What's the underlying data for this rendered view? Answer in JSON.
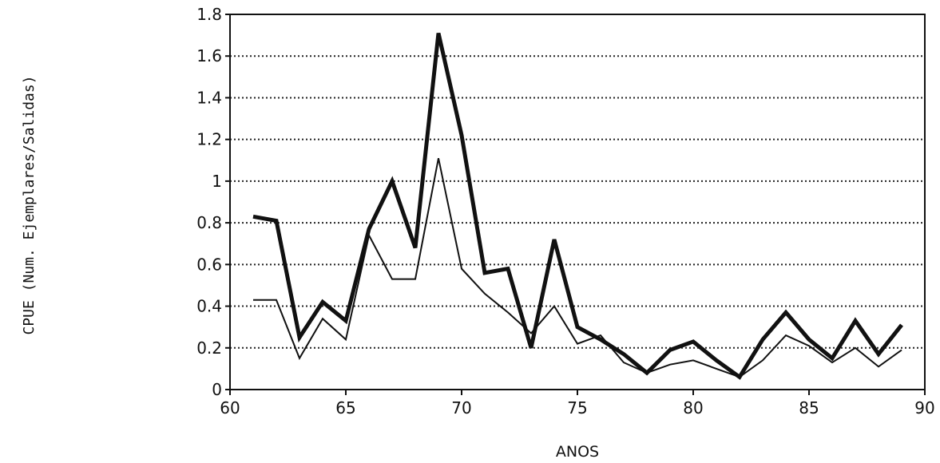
{
  "chart_data": {
    "type": "line",
    "title": "",
    "xlabel": "ANOS",
    "ylabel": "CPUE (Num. Ejemplares/Salidas)",
    "xlim": [
      60,
      90
    ],
    "ylim": [
      0,
      1.8
    ],
    "x_ticks": [
      "60",
      "65",
      "70",
      "75",
      "80",
      "85",
      "90"
    ],
    "y_ticks": [
      "0",
      "0.2",
      "0.4",
      "0.6",
      "0.8",
      "1",
      "1.2",
      "1.4",
      "1.6",
      "1.8"
    ],
    "grid": "horizontal dotted",
    "x": [
      61,
      62,
      63,
      64,
      65,
      66,
      67,
      68,
      69,
      70,
      71,
      72,
      73,
      74,
      75,
      76,
      77,
      78,
      79,
      80,
      81,
      82,
      83,
      84,
      85,
      86,
      87,
      88,
      89
    ],
    "series": [
      {
        "style": "thick",
        "color": "#111111",
        "values": [
          0.83,
          0.81,
          0.25,
          0.42,
          0.33,
          0.77,
          1.0,
          0.68,
          1.71,
          1.22,
          0.56,
          0.58,
          0.2,
          0.72,
          0.3,
          0.24,
          0.17,
          0.08,
          0.19,
          0.23,
          0.14,
          0.06,
          0.24,
          0.37,
          0.24,
          0.15,
          0.33,
          0.17,
          0.31
        ]
      },
      {
        "style": "thin",
        "color": "#111111",
        "values": [
          0.43,
          0.43,
          0.15,
          0.34,
          0.24,
          0.74,
          0.53,
          0.53,
          1.11,
          0.58,
          0.46,
          0.37,
          0.27,
          0.4,
          0.22,
          0.26,
          0.13,
          0.08,
          0.12,
          0.14,
          0.1,
          0.06,
          0.14,
          0.26,
          0.21,
          0.13,
          0.2,
          0.11,
          0.19
        ]
      }
    ]
  }
}
